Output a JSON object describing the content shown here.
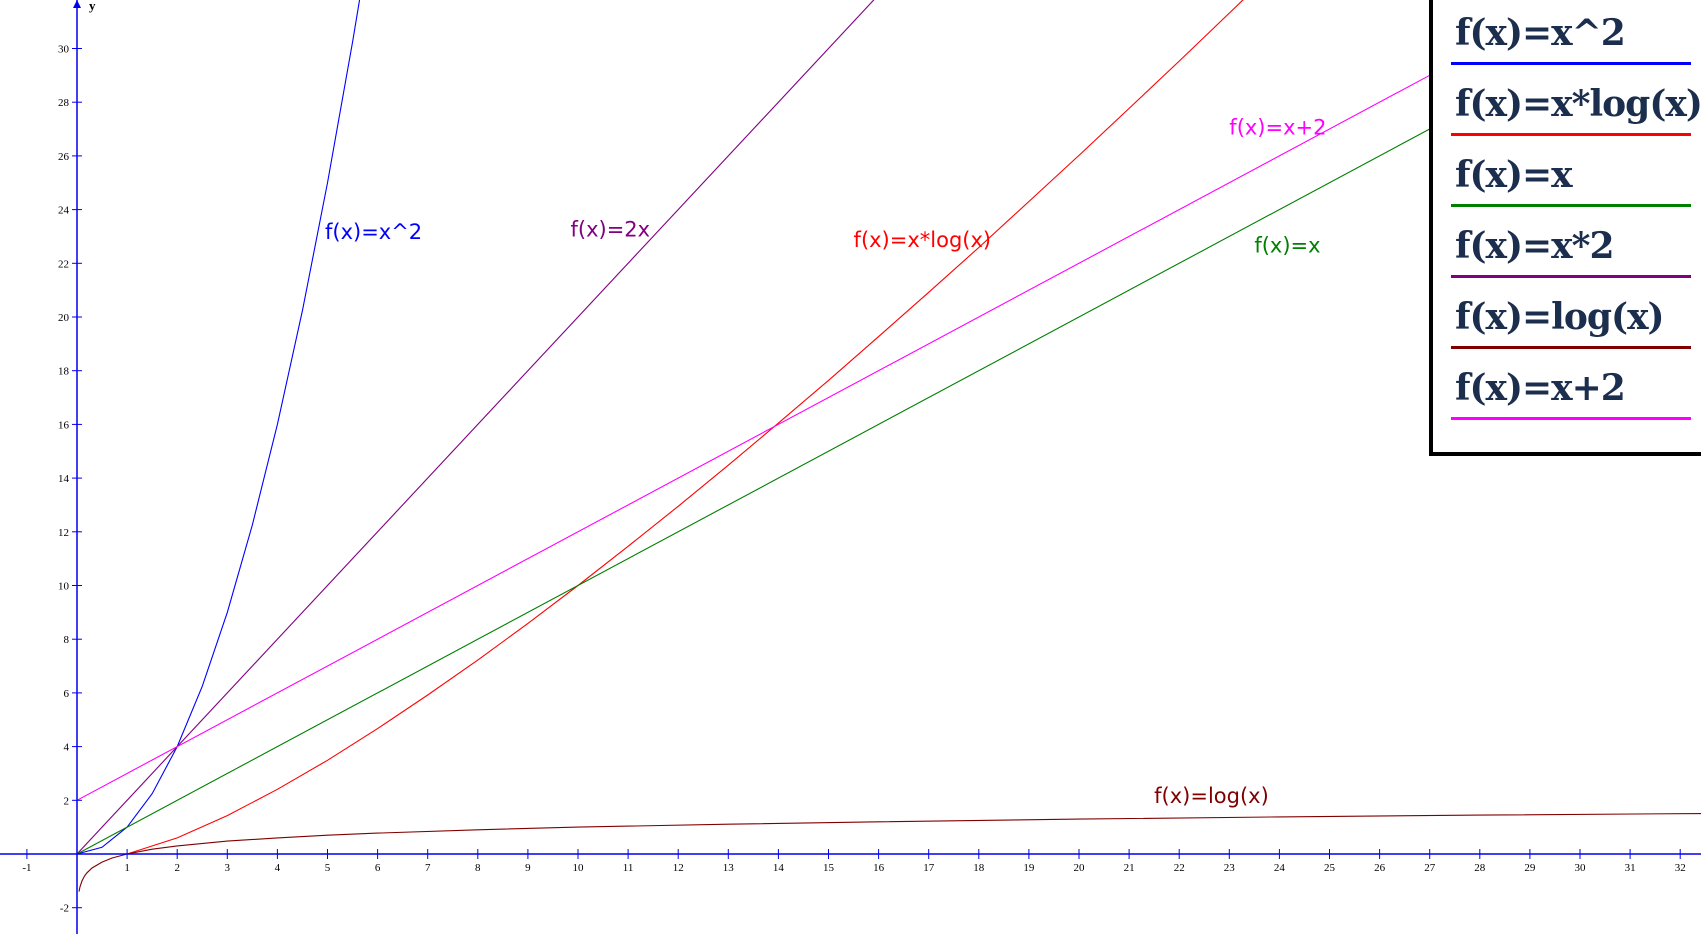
{
  "chart_data": {
    "type": "line",
    "title": "",
    "xlabel": "",
    "ylabel": "y",
    "xlim": [
      -1.5,
      32.5
    ],
    "ylim": [
      -3,
      32
    ],
    "xticks": [
      -1,
      1,
      2,
      3,
      4,
      5,
      6,
      7,
      8,
      9,
      10,
      11,
      12,
      13,
      14,
      15,
      16,
      17,
      18,
      19,
      20,
      21,
      22,
      23,
      24,
      25,
      26,
      27,
      28,
      29,
      30,
      31,
      32
    ],
    "yticks": [
      -2,
      2,
      4,
      6,
      8,
      10,
      12,
      14,
      16,
      18,
      20,
      22,
      24,
      26,
      28,
      30
    ],
    "grid": false,
    "axis_color": "#0000ee",
    "series": [
      {
        "name": "f(x)=x^2",
        "color": "#0000ff",
        "x": [
          0,
          0.5,
          1,
          1.5,
          2,
          2.5,
          3,
          3.5,
          4,
          4.5,
          5,
          5.5,
          5.7
        ],
        "y": [
          0,
          0.25,
          1,
          2.25,
          4,
          6.25,
          9,
          12.25,
          16,
          20.25,
          25,
          30.25,
          32.49
        ]
      },
      {
        "name": "f(x)=2x",
        "color": "#800080",
        "x": [
          0,
          16.3
        ],
        "y": [
          0,
          32.6
        ]
      },
      {
        "name": "f(x)=x*log(x)",
        "color": "#ff0000",
        "x": [
          1,
          2,
          3,
          4,
          5,
          6,
          7,
          8,
          9,
          10,
          11,
          12,
          13,
          14,
          15,
          16,
          17,
          18,
          19,
          20,
          21,
          22,
          23,
          23.5
        ],
        "y": [
          0,
          0.6,
          1.43,
          2.41,
          3.49,
          4.67,
          5.92,
          7.22,
          8.59,
          10,
          11.46,
          12.95,
          14.48,
          16.05,
          17.64,
          19.27,
          20.92,
          22.59,
          24.3,
          26.02,
          27.77,
          29.53,
          31.32,
          32.22
        ]
      },
      {
        "name": "f(x)=x",
        "color": "#008000",
        "x": [
          0,
          27
        ],
        "y": [
          0,
          27
        ]
      },
      {
        "name": "f(x)=log(x)",
        "color": "#800000",
        "x": [
          0.04,
          0.06,
          0.1,
          0.15,
          0.2,
          0.3,
          0.5,
          0.7,
          1,
          1.5,
          2,
          3,
          4,
          5,
          6,
          8,
          10,
          13,
          16,
          20,
          24,
          28,
          32.5
        ],
        "y": [
          -1.4,
          -1.22,
          -1,
          -0.82,
          -0.7,
          -0.52,
          -0.3,
          -0.15,
          0,
          0.18,
          0.3,
          0.48,
          0.6,
          0.7,
          0.78,
          0.9,
          1,
          1.11,
          1.2,
          1.3,
          1.38,
          1.45,
          1.51
        ]
      },
      {
        "name": "f(x)=x+2",
        "color": "#ff00ff",
        "x": [
          0,
          27
        ],
        "y": [
          2,
          29
        ]
      }
    ],
    "annotations": [
      {
        "text": "f(x)=x^2",
        "x": 4.95,
        "y": 22.9,
        "color": "#0000ff"
      },
      {
        "text": "f(x)=2x",
        "x": 9.85,
        "y": 23.0,
        "color": "#800080"
      },
      {
        "text": "f(x)=x*log(x)",
        "x": 15.5,
        "y": 22.6,
        "color": "#ff0000"
      },
      {
        "text": "f(x)=x+2",
        "x": 23.0,
        "y": 26.8,
        "color": "#ff00ff"
      },
      {
        "text": "f(x)=x",
        "x": 23.5,
        "y": 22.4,
        "color": "#008000"
      },
      {
        "text": "f(x)=log(x)",
        "x": 21.5,
        "y": 1.9,
        "color": "#800000"
      }
    ]
  },
  "legend": {
    "entries": [
      {
        "label": "f(x)=x^2",
        "color": "#0000ff"
      },
      {
        "label": "f(x)=x*log(x)",
        "color": "#ff0000"
      },
      {
        "label": "f(x)=x",
        "color": "#008000"
      },
      {
        "label": "f(x)=x*2",
        "color": "#800080"
      },
      {
        "label": "f(x)=log(x)",
        "color": "#800000"
      },
      {
        "label": "f(x)=x+2",
        "color": "#ff00ff"
      }
    ]
  }
}
